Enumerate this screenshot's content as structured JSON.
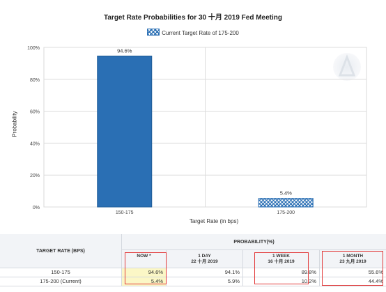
{
  "chart_data": {
    "type": "bar",
    "title": "Target Rate Probabilities for 30 十月 2019 Fed Meeting",
    "xlabel": "Target Rate (in bps)",
    "ylabel": "Probability",
    "categories": [
      "150-175",
      "175-200"
    ],
    "values": [
      94.6,
      5.4
    ],
    "value_labels": [
      "94.6%",
      "5.4%"
    ],
    "ylim": [
      0,
      100
    ],
    "yticks": [
      "0%",
      "20%",
      "40%",
      "60%",
      "80%",
      "100%"
    ],
    "ytick_values": [
      0,
      20,
      40,
      60,
      80,
      100
    ],
    "grid": true,
    "legend": [
      "Current Target Rate of 175-200"
    ],
    "legend_position": "top",
    "colors": {
      "solid": "#2a6fb4",
      "hatched": "#2a6fb4"
    },
    "current_category": "175-200"
  },
  "table": {
    "left_header": "TARGET RATE (BPS)",
    "prob_header": "PROBABILITY(%)",
    "columns": [
      {
        "line1": "NOW *",
        "line2": ""
      },
      {
        "line1": "1 DAY",
        "line2": "22 十月 2019"
      },
      {
        "line1": "1 WEEK",
        "line2": "16 十月 2019"
      },
      {
        "line1": "1 MONTH",
        "line2": "23 九月 2019"
      }
    ],
    "rows": [
      {
        "label": "150-175",
        "values": [
          "94.6%",
          "94.1%",
          "89.8%",
          "55.6%"
        ]
      },
      {
        "label": "175-200 (Current)",
        "values": [
          "5.4%",
          "5.9%",
          "10.2%",
          "44.4%"
        ]
      }
    ]
  }
}
